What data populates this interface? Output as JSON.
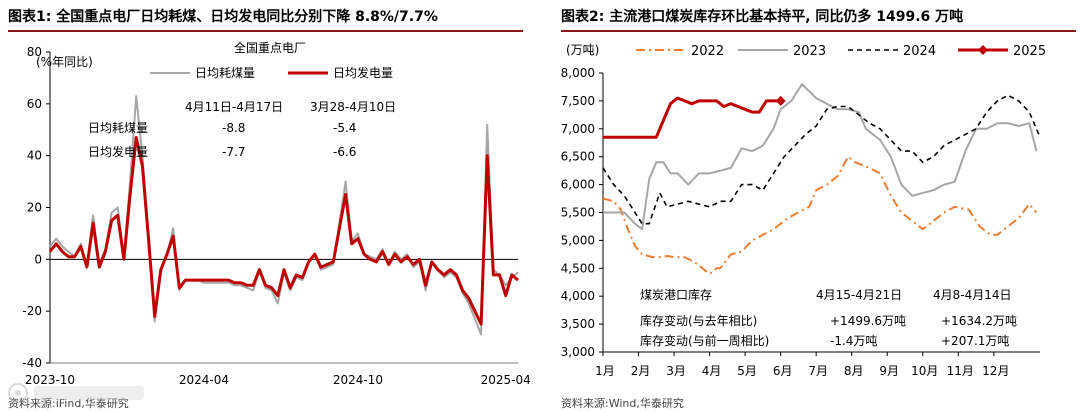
{
  "left": {
    "title": "图表1:  全国重点电厂日均耗煤、日均发电同比分别下降 8.8%/7.7%",
    "source": "资料来源:iFind,华泰研究",
    "chart_data": {
      "type": "line",
      "title": "全国重点电厂",
      "ylabel": "(%年同比)",
      "ylim": [
        -40,
        80
      ],
      "yticks": [
        -40,
        -20,
        0,
        20,
        40,
        60,
        80
      ],
      "xticks": [
        {
          "x": 0,
          "label": "2023-10"
        },
        {
          "x": 25,
          "label": "2024-04"
        },
        {
          "x": 50,
          "label": "2024-10"
        },
        {
          "x": 74,
          "label": "2025-04"
        }
      ],
      "xlim": [
        0,
        76
      ],
      "legend_position": "top",
      "series": [
        {
          "name": "日均耗煤量",
          "color": "#a6a6a6",
          "width": 2,
          "x": [
            0,
            1,
            2,
            3,
            4,
            5,
            6,
            7,
            8,
            9,
            10,
            11,
            12,
            13,
            14,
            15,
            16,
            17,
            18,
            19,
            20,
            21,
            22,
            23,
            24,
            25,
            26,
            27,
            28,
            29,
            30,
            31,
            32,
            33,
            34,
            35,
            36,
            37,
            38,
            39,
            40,
            41,
            42,
            43,
            44,
            45,
            46,
            47,
            48,
            49,
            50,
            51,
            52,
            53,
            54,
            55,
            56,
            57,
            58,
            59,
            60,
            61,
            62,
            63,
            64,
            65,
            66,
            67,
            68,
            69,
            70,
            71,
            72,
            73,
            74,
            75,
            76
          ],
          "y": [
            5,
            8,
            5,
            3,
            1,
            6,
            -3,
            17,
            -2,
            4,
            18,
            20,
            1,
            30,
            63,
            40,
            10,
            -24,
            -5,
            2,
            12,
            -12,
            -8,
            -8,
            -8,
            -9,
            -9,
            -9,
            -9,
            -9,
            -10,
            -10,
            -11,
            -12,
            -4,
            -11,
            -12,
            -17,
            -5,
            -12,
            -7,
            -8,
            -1,
            2,
            -4,
            -3,
            -2,
            14,
            30,
            7,
            10,
            2,
            1,
            0,
            4,
            -2,
            3,
            0,
            2,
            -3,
            -1,
            -12,
            -1,
            -4,
            -7,
            -5,
            -7,
            -13,
            -17,
            -23,
            -29,
            52,
            -4,
            -6,
            -10,
            -7,
            -5
          ]
        },
        {
          "name": "日均发电量",
          "color": "#c00000",
          "width": 3,
          "x": [
            0,
            1,
            2,
            3,
            4,
            5,
            6,
            7,
            8,
            9,
            10,
            11,
            12,
            13,
            14,
            15,
            16,
            17,
            18,
            19,
            20,
            21,
            22,
            23,
            24,
            25,
            26,
            27,
            28,
            29,
            30,
            31,
            32,
            33,
            34,
            35,
            36,
            37,
            38,
            39,
            40,
            41,
            42,
            43,
            44,
            45,
            46,
            47,
            48,
            49,
            50,
            51,
            52,
            53,
            54,
            55,
            56,
            57,
            58,
            59,
            60,
            61,
            62,
            63,
            64,
            65,
            66,
            67,
            68,
            69,
            70,
            71,
            72,
            73,
            74,
            75,
            76
          ],
          "y": [
            3,
            6,
            3,
            1,
            1,
            5,
            -3,
            14,
            -3,
            3,
            15,
            17,
            0,
            25,
            47,
            36,
            8,
            -22,
            -4,
            2,
            9,
            -11,
            -8,
            -8,
            -8,
            -8,
            -8,
            -8,
            -8,
            -8,
            -9,
            -9,
            -10,
            -10,
            -4,
            -10,
            -11,
            -14,
            -4,
            -11,
            -6,
            -7,
            -1,
            2,
            -3,
            -2,
            -1,
            12,
            25,
            6,
            8,
            2,
            0,
            -1,
            3,
            -2,
            2,
            -1,
            1,
            -2,
            0,
            -10,
            -1,
            -4,
            -6,
            -4,
            -6,
            -12,
            -15,
            -20,
            -25,
            40,
            -6,
            -6,
            -14,
            -6,
            -8
          ]
        }
      ],
      "table": {
        "col1": "4月11日-4月17日",
        "col2": "3月28-4月10日",
        "rows": [
          {
            "label": "日均耗煤量",
            "v1": "-8.8",
            "v2": "-5.4"
          },
          {
            "label": "日均发电量",
            "v1": "-7.7",
            "v2": "-6.6"
          }
        ]
      }
    }
  },
  "right": {
    "title": "图表2:  主流港口煤炭库存环比基本持平, 同比仍多 1499.6 万吨",
    "source": "资料来源:Wind,华泰研究",
    "chart_data": {
      "type": "line",
      "ylabel": "(万吨)",
      "ylim": [
        3000,
        8000
      ],
      "yticks": [
        3000,
        3500,
        4000,
        4500,
        5000,
        5500,
        6000,
        6500,
        7000,
        7500,
        8000
      ],
      "xlim": [
        0,
        12.3
      ],
      "categories": [
        "1月",
        "2月",
        "3月",
        "4月",
        "5月",
        "6月",
        "7月",
        "8月",
        "9月",
        "10月",
        "11月",
        "12月"
      ],
      "legend_position": "top",
      "series": [
        {
          "name": "2022",
          "color": "#ed7d31",
          "dash": "9,4,2,4",
          "width": 2,
          "x": [
            0,
            0.3,
            0.5,
            0.7,
            0.9,
            1.1,
            1.4,
            1.6,
            1.8,
            2.0,
            2.3,
            2.6,
            2.8,
            3.0,
            3.2,
            3.3,
            3.6,
            3.9,
            4.2,
            4.5,
            4.8,
            5.2,
            5.5,
            5.8,
            6.0,
            6.3,
            6.6,
            6.9,
            7.1,
            7.5,
            7.8,
            8.1,
            8.4,
            8.8,
            9.0,
            9.3,
            9.6,
            9.9,
            10.3,
            10.6,
            10.9,
            11.1,
            11.4,
            11.7,
            12.0,
            12.2
          ],
          "y": [
            5750,
            5700,
            5550,
            5200,
            4900,
            4750,
            4700,
            4700,
            4720,
            4700,
            4700,
            4600,
            4500,
            4400,
            4500,
            4500,
            4750,
            4800,
            5000,
            5100,
            5200,
            5400,
            5500,
            5600,
            5900,
            6000,
            6150,
            6500,
            6400,
            6300,
            6200,
            5800,
            5500,
            5300,
            5200,
            5350,
            5500,
            5600,
            5550,
            5250,
            5100,
            5100,
            5250,
            5400,
            5650,
            5500
          ]
        },
        {
          "name": "2023",
          "color": "#a6a6a6",
          "width": 2,
          "x": [
            0,
            0.3,
            0.6,
            0.9,
            1.1,
            1.3,
            1.5,
            1.7,
            1.9,
            2.1,
            2.4,
            2.7,
            3.0,
            3.3,
            3.6,
            3.9,
            4.2,
            4.5,
            4.8,
            5.0,
            5.3,
            5.6,
            6.0,
            6.3,
            6.6,
            6.9,
            7.2,
            7.4,
            7.8,
            8.1,
            8.4,
            8.7,
            9.0,
            9.3,
            9.6,
            9.9,
            10.2,
            10.5,
            10.8,
            11.1,
            11.4,
            11.7,
            12.0,
            12.2
          ],
          "y": [
            5500,
            5500,
            5500,
            5300,
            5200,
            6100,
            6400,
            6400,
            6200,
            6200,
            6000,
            6200,
            6200,
            6250,
            6300,
            6650,
            6600,
            6700,
            7000,
            7350,
            7500,
            7800,
            7550,
            7450,
            7350,
            7350,
            7300,
            7000,
            6800,
            6500,
            6000,
            5800,
            5850,
            5900,
            6000,
            6050,
            6600,
            7000,
            7000,
            7100,
            7100,
            7050,
            7100,
            6600
          ]
        },
        {
          "name": "2024",
          "color": "#000000",
          "dash": "5,4",
          "width": 1.6,
          "x": [
            0,
            0.3,
            0.6,
            0.9,
            1.1,
            1.3,
            1.6,
            1.8,
            2.1,
            2.4,
            2.7,
            3.0,
            3.3,
            3.6,
            3.9,
            4.2,
            4.5,
            4.8,
            5.1,
            5.4,
            5.7,
            6.0,
            6.3,
            6.6,
            6.9,
            7.2,
            7.5,
            7.8,
            8.1,
            8.4,
            8.7,
            9.0,
            9.3,
            9.6,
            9.9,
            10.2,
            10.5,
            10.8,
            11.1,
            11.4,
            11.7,
            12.0,
            12.3
          ],
          "y": [
            6300,
            6000,
            5800,
            5500,
            5300,
            5300,
            5850,
            5600,
            5650,
            5700,
            5650,
            5600,
            5700,
            5700,
            6000,
            6000,
            5900,
            6200,
            6500,
            6700,
            6900,
            7050,
            7350,
            7400,
            7400,
            7250,
            7100,
            7000,
            6800,
            6600,
            6600,
            6400,
            6500,
            6700,
            6800,
            6900,
            7000,
            7300,
            7500,
            7600,
            7500,
            7300,
            6850
          ]
        },
        {
          "name": "2025",
          "color": "#c00000",
          "width": 3,
          "marker": "diamond",
          "x": [
            0,
            0.4,
            0.8,
            1.2,
            1.5,
            1.7,
            1.9,
            2.1,
            2.3,
            2.5,
            2.7,
            3.0,
            3.2,
            3.4,
            3.6,
            3.8,
            4.0,
            4.2,
            4.4,
            4.6,
            4.8,
            5.0
          ],
          "y": [
            6850,
            6850,
            6850,
            6850,
            6850,
            7150,
            7450,
            7550,
            7500,
            7450,
            7500,
            7500,
            7500,
            7400,
            7450,
            7400,
            7350,
            7300,
            7300,
            7500,
            7500,
            7500
          ]
        }
      ],
      "table": {
        "col1": "4月15-4月21日",
        "col2": "4月8-4月14日",
        "rows": [
          {
            "label": "煤炭港口库存",
            "v1": "",
            "v2": ""
          },
          {
            "label": "库存变动(与去年相比)",
            "v1": "+1499.6万吨",
            "v2": "+1634.2万吨"
          },
          {
            "label": "库存变动(与前一周相比)",
            "v1": "-1.4万吨",
            "v2": "+207.1万吨"
          }
        ]
      }
    }
  }
}
